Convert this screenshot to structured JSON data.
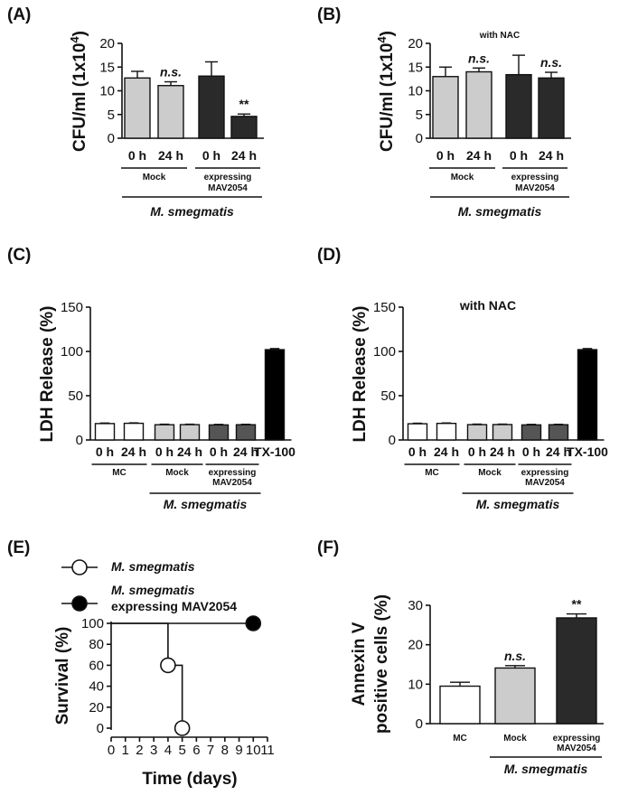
{
  "chart_data": [
    {
      "id": "A",
      "panel_label": "(A)",
      "type": "bar",
      "ylabel": "CFU/ml (1x10",
      "ylabel_sup": "4",
      "ylabel_end": ")",
      "ylim": [
        0,
        20
      ],
      "yticks": [
        "0",
        "5",
        "10",
        "15",
        "20"
      ],
      "categories": [
        "0 h",
        "24 h",
        "0 h",
        "24 h"
      ],
      "values": [
        12.7,
        11.1,
        13.1,
        4.6
      ],
      "errors": [
        1.4,
        0.8,
        3.0,
        0.5
      ],
      "colors": [
        "#cccccc",
        "#cccccc",
        "#2a2a2a",
        "#2a2a2a"
      ],
      "annotations": [
        "",
        "n.s.",
        "",
        "**"
      ],
      "groups": [
        {
          "label": "Mock",
          "start": 0,
          "end": 1
        },
        {
          "label": "expressing",
          "label2": "MAV2054",
          "start": 2,
          "end": 3
        }
      ],
      "species": "M. smegmatis",
      "note": ""
    },
    {
      "id": "B",
      "panel_label": "(B)",
      "type": "bar",
      "ylabel": "CFU/ml (1x10",
      "ylabel_sup": "4",
      "ylabel_end": ")",
      "ylim": [
        0,
        20
      ],
      "yticks": [
        "0",
        "5",
        "10",
        "15",
        "20"
      ],
      "categories": [
        "0 h",
        "24 h",
        "0 h",
        "24 h"
      ],
      "values": [
        13.0,
        14.0,
        13.4,
        12.7
      ],
      "errors": [
        2.0,
        0.8,
        4.1,
        1.2
      ],
      "colors": [
        "#cccccc",
        "#cccccc",
        "#2a2a2a",
        "#2a2a2a"
      ],
      "annotations": [
        "",
        "n.s.",
        "",
        "n.s."
      ],
      "groups": [
        {
          "label": "Mock",
          "start": 0,
          "end": 1
        },
        {
          "label": "expressing",
          "label2": "MAV2054",
          "start": 2,
          "end": 3
        }
      ],
      "species": "M. smegmatis",
      "note": "with NAC"
    },
    {
      "id": "C",
      "panel_label": "(C)",
      "type": "bar",
      "ylabel": "LDH Release (%)",
      "ylim": [
        0,
        150
      ],
      "yticks": [
        "0",
        "50",
        "100",
        "150"
      ],
      "categories": [
        "0 h",
        "24 h",
        "0 h",
        "24 h",
        "0 h",
        "24 h",
        "TX-100"
      ],
      "values": [
        18.5,
        18.8,
        17.2,
        17.3,
        17.0,
        17.2,
        102
      ],
      "errors": [
        0.6,
        0.5,
        0.6,
        0.5,
        0.6,
        0.5,
        1.2
      ],
      "colors": [
        "#ffffff",
        "#ffffff",
        "#cccccc",
        "#cccccc",
        "#555555",
        "#555555",
        "#000000"
      ],
      "annotations": [
        "",
        "",
        "",
        "",
        "",
        "",
        ""
      ],
      "groups": [
        {
          "label": "MC",
          "start": 0,
          "end": 1
        },
        {
          "label": "Mock",
          "start": 2,
          "end": 3
        },
        {
          "label": "expressing",
          "label2": "MAV2054",
          "start": 4,
          "end": 5
        }
      ],
      "species": "M. smegmatis",
      "species_start": 2,
      "species_end": 5,
      "note": ""
    },
    {
      "id": "D",
      "panel_label": "(D)",
      "type": "bar",
      "ylabel": "LDH Release (%)",
      "ylim": [
        0,
        150
      ],
      "yticks": [
        "0",
        "50",
        "100",
        "150"
      ],
      "categories": [
        "0 h",
        "24 h",
        "0 h",
        "24 h",
        "0 h",
        "24 h",
        "TX-100"
      ],
      "values": [
        18.3,
        18.7,
        17.3,
        17.4,
        17.0,
        17.2,
        102
      ],
      "errors": [
        0.6,
        0.5,
        0.6,
        0.5,
        0.6,
        0.5,
        1.2
      ],
      "colors": [
        "#ffffff",
        "#ffffff",
        "#cccccc",
        "#cccccc",
        "#555555",
        "#555555",
        "#000000"
      ],
      "annotations": [
        "",
        "",
        "",
        "",
        "",
        "",
        ""
      ],
      "groups": [
        {
          "label": "MC",
          "start": 0,
          "end": 1
        },
        {
          "label": "Mock",
          "start": 2,
          "end": 3
        },
        {
          "label": "expressing",
          "label2": "MAV2054",
          "start": 4,
          "end": 5
        }
      ],
      "species": "M. smegmatis",
      "species_start": 2,
      "species_end": 5,
      "note": "with NAC"
    },
    {
      "id": "E",
      "panel_label": "(E)",
      "type": "line",
      "xlabel": "Time (days)",
      "ylabel": "Survival (%)",
      "xlim": [
        0,
        11
      ],
      "ylim": [
        0,
        100
      ],
      "xticks": [
        "0",
        "1",
        "2",
        "3",
        "4",
        "5",
        "6",
        "7",
        "8",
        "9",
        "10",
        "11"
      ],
      "yticks": [
        "0",
        "20",
        "40",
        "60",
        "80",
        "100"
      ],
      "series": [
        {
          "name": "M. smegmatis",
          "steps": [
            [
              0,
              100
            ],
            [
              4,
              100
            ],
            [
              4,
              60
            ],
            [
              5,
              60
            ],
            [
              5,
              0
            ]
          ],
          "markers": [
            [
              4,
              60
            ],
            [
              5,
              0
            ]
          ],
          "marker_fill": "#ffffff"
        },
        {
          "name": "M. smegmatis",
          "name2": "expressing MAV2054",
          "steps": [
            [
              0,
              100
            ],
            [
              10,
              100
            ]
          ],
          "markers": [
            [
              10,
              100
            ]
          ],
          "marker_fill": "#000000"
        }
      ]
    },
    {
      "id": "F",
      "panel_label": "(F)",
      "type": "bar",
      "ylabel": "Annexin V",
      "ylabel2": "positive cells (%)",
      "ylim": [
        0,
        30
      ],
      "yticks": [
        "0",
        "10",
        "20",
        "30"
      ],
      "categories": [
        "MC",
        "Mock",
        "expressing"
      ],
      "categories_line2": [
        "",
        "",
        "MAV2054"
      ],
      "values": [
        9.5,
        14.1,
        26.8
      ],
      "errors": [
        1.0,
        0.6,
        1.0
      ],
      "colors": [
        "#ffffff",
        "#cccccc",
        "#2a2a2a"
      ],
      "annotations": [
        "",
        "n.s.",
        "**"
      ],
      "species": "M. smegmatis",
      "species_start": 1,
      "species_end": 2
    }
  ]
}
